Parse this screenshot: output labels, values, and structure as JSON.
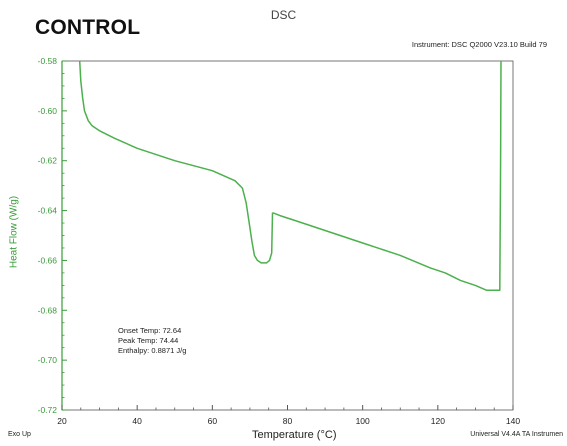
{
  "header": {
    "control_label": "CONTROL",
    "title": "DSC",
    "instrument": "Instrument: DSC Q2000 V23.10 Build 79"
  },
  "footer": {
    "exo_up": "Exo Up",
    "universal": "Universal V4.4A TA Instrumen"
  },
  "annotations": [
    "Onset Temp: 72.64",
    "Peak Temp: 74.44",
    "Enthalpy: 0.8871 J/g"
  ],
  "colors": {
    "curve": "#4cb04c",
    "y_axis": "#3a9b3a",
    "frame": "#555555"
  },
  "chart_data": {
    "type": "line",
    "title": "DSC",
    "xlabel": "Temperature (°C)",
    "ylabel": "Heat Flow (W/g)",
    "xlim": [
      20,
      140
    ],
    "ylim": [
      -0.72,
      -0.58
    ],
    "x_ticks": [
      20,
      40,
      60,
      80,
      100,
      120,
      140
    ],
    "x_tick_labels": [
      "20",
      "40",
      "60",
      "80",
      "100",
      "120",
      "140"
    ],
    "y_ticks": [
      -0.58,
      -0.6,
      -0.62,
      -0.64,
      -0.66,
      -0.68,
      -0.7,
      -0.72
    ],
    "y_tick_labels": [
      "-0.58",
      "-0.60",
      "-0.62",
      "-0.64",
      "-0.66",
      "-0.68",
      "-0.70",
      "-0.72"
    ],
    "grid": false,
    "series": [
      {
        "x": [
          24.7,
          25.0,
          25.5,
          26.0,
          27.0,
          28.0,
          30.0,
          34.0,
          40.0,
          50.0,
          60.0,
          66.0,
          68.0,
          69.0,
          69.8,
          70.5,
          71.2,
          72.0,
          73.0,
          74.4,
          75.2,
          75.8,
          76.0,
          76.3,
          78.0,
          82.0,
          90.0,
          100.0,
          110.0,
          118.0,
          122.0,
          126.0,
          130.0,
          133.0,
          136.0,
          136.5,
          136.7,
          136.8
        ],
        "y": [
          -0.58,
          -0.588,
          -0.595,
          -0.6,
          -0.604,
          -0.606,
          -0.608,
          -0.611,
          -0.615,
          -0.62,
          -0.624,
          -0.628,
          -0.631,
          -0.637,
          -0.645,
          -0.652,
          -0.658,
          -0.66,
          -0.661,
          -0.661,
          -0.66,
          -0.657,
          -0.641,
          -0.641,
          -0.642,
          -0.644,
          -0.648,
          -0.653,
          -0.658,
          -0.663,
          -0.665,
          -0.668,
          -0.67,
          -0.672,
          -0.672,
          -0.672,
          -0.62,
          -0.58
        ]
      }
    ]
  }
}
